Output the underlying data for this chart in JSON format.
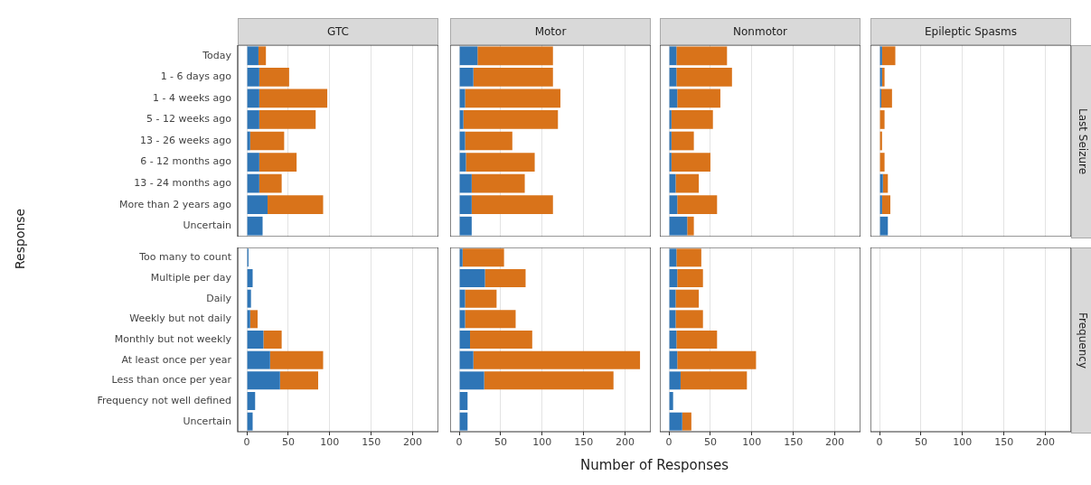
{
  "chart_data": [
    {
      "type": "bar",
      "orientation": "horizontal",
      "stacked": true,
      "title": "GTC",
      "ylabel": "Response",
      "categories": [
        "Today",
        "1 - 6 days ago",
        "1 - 4 weeks ago",
        "5 - 12 weeks ago",
        "13 - 26 weeks ago",
        "6 - 12 months ago",
        "13 - 24 months ago",
        "More than 2 years ago",
        "Uncertain"
      ],
      "series": [
        {
          "color": "#2e75b6",
          "values": [
            14,
            15,
            15,
            15,
            4,
            15,
            15,
            25,
            19
          ]
        },
        {
          "color": "#d9731a",
          "values": [
            9,
            36,
            82,
            68,
            41,
            45,
            27,
            67,
            0
          ]
        }
      ],
      "xlim": [
        -11,
        231
      ],
      "xticks": [
        0,
        50,
        100,
        150,
        200
      ],
      "grid": "x",
      "tick_labels": "y"
    },
    {
      "type": "bar",
      "orientation": "horizontal",
      "stacked": true,
      "title": "Motor",
      "categories": [
        null,
        null,
        null,
        null,
        null,
        null,
        null,
        null,
        null
      ],
      "series": [
        {
          "color": "#2e75b6",
          "values": [
            22,
            17,
            7,
            5,
            7,
            8,
            15,
            15,
            15
          ]
        },
        {
          "color": "#d9731a",
          "values": [
            91,
            96,
            115,
            114,
            57,
            83,
            64,
            98,
            0
          ]
        }
      ],
      "xlim": [
        -11,
        231
      ],
      "xticks": [
        0,
        50,
        100,
        150,
        200
      ],
      "grid": "x",
      "tick_labels": false
    },
    {
      "type": "bar",
      "orientation": "horizontal",
      "stacked": true,
      "title": "Nonmotor",
      "categories": [
        null,
        null,
        null,
        null,
        null,
        null,
        null,
        null,
        null
      ],
      "series": [
        {
          "color": "#2e75b6",
          "values": [
            9,
            9,
            10,
            3,
            3,
            3,
            8,
            10,
            22
          ]
        },
        {
          "color": "#d9731a",
          "values": [
            61,
            67,
            52,
            50,
            27,
            47,
            28,
            48,
            8
          ]
        }
      ],
      "xlim": [
        -11,
        231
      ],
      "xticks": [
        0,
        50,
        100,
        150,
        200
      ],
      "grid": "x",
      "tick_labels": false
    },
    {
      "type": "bar",
      "orientation": "horizontal",
      "stacked": true,
      "title": "Epileptic Spasms",
      "y2label": "Last Seizure",
      "categories": [
        null,
        null,
        null,
        null,
        null,
        null,
        null,
        null,
        null
      ],
      "series": [
        {
          "color": "#2e75b6",
          "values": [
            3,
            3,
            2,
            null,
            null,
            null,
            4,
            3,
            10
          ]
        },
        {
          "color": "#d9731a",
          "values": [
            16,
            3,
            13,
            6,
            3,
            6,
            6,
            10,
            0
          ]
        }
      ],
      "xlim": [
        -11,
        231
      ],
      "xticks": [
        0,
        50,
        100,
        150,
        200
      ],
      "grid": "x",
      "tick_labels": false
    },
    {
      "type": "bar",
      "orientation": "horizontal",
      "stacked": true,
      "categories": [
        "Too many to count",
        "Multiple per day",
        "Daily",
        "Weekly but not daily",
        "Monthly but not weekly",
        "At least once per year",
        "Less than once per year",
        "Frequency not well defined",
        "Uncertain"
      ],
      "series": [
        {
          "color": "#2e75b6",
          "values": [
            2,
            7,
            5,
            4,
            20,
            28,
            40,
            10,
            7
          ]
        },
        {
          "color": "#d9731a",
          "values": [
            0,
            0,
            0,
            9,
            22,
            64,
            46,
            0,
            0
          ]
        }
      ],
      "xlim": [
        -11,
        231
      ],
      "xticks": [
        0,
        50,
        100,
        150,
        200
      ],
      "grid": "x"
    },
    {
      "type": "bar",
      "orientation": "horizontal",
      "stacked": true,
      "xlabel": "Number of Responses",
      "categories": [
        null,
        null,
        null,
        null,
        null,
        null,
        null,
        null,
        null
      ],
      "series": [
        {
          "color": "#2e75b6",
          "values": [
            4,
            31,
            7,
            7,
            13,
            17,
            30,
            10,
            10
          ]
        },
        {
          "color": "#d9731a",
          "values": [
            50,
            49,
            38,
            61,
            75,
            201,
            156,
            0,
            0
          ]
        }
      ],
      "xlim": [
        -11,
        231
      ],
      "xticks": [
        0,
        50,
        100,
        150,
        200
      ],
      "grid": "x",
      "tick_labels": "x"
    },
    {
      "type": "bar",
      "orientation": "horizontal",
      "stacked": true,
      "categories": [
        null,
        null,
        null,
        null,
        null,
        null,
        null,
        null,
        null
      ],
      "series": [
        {
          "color": "#2e75b6",
          "values": [
            9,
            10,
            8,
            8,
            9,
            10,
            14,
            5,
            16
          ]
        },
        {
          "color": "#d9731a",
          "values": [
            30,
            31,
            28,
            33,
            49,
            95,
            80,
            0,
            11
          ]
        }
      ],
      "xlim": [
        -11,
        231
      ],
      "xticks": [
        0,
        50,
        100,
        150,
        200
      ],
      "grid": "x",
      "tick_labels": "x"
    },
    {
      "type": "bar",
      "orientation": "horizontal",
      "stacked": true,
      "y2label": "Frequency",
      "categories": [
        null,
        null,
        null,
        null,
        null,
        null,
        null,
        null,
        null
      ],
      "series": [
        {
          "color": "#2e75b6",
          "values": [
            null,
            null,
            null,
            null,
            null,
            null,
            null,
            null,
            null
          ]
        },
        {
          "color": "#d9731a",
          "values": [
            null,
            null,
            null,
            null,
            null,
            null,
            null,
            null,
            null
          ]
        }
      ],
      "xlim": [
        -11,
        231
      ],
      "xticks": [
        0,
        50,
        100,
        150,
        200
      ],
      "grid": "x",
      "tick_labels": "x"
    }
  ]
}
